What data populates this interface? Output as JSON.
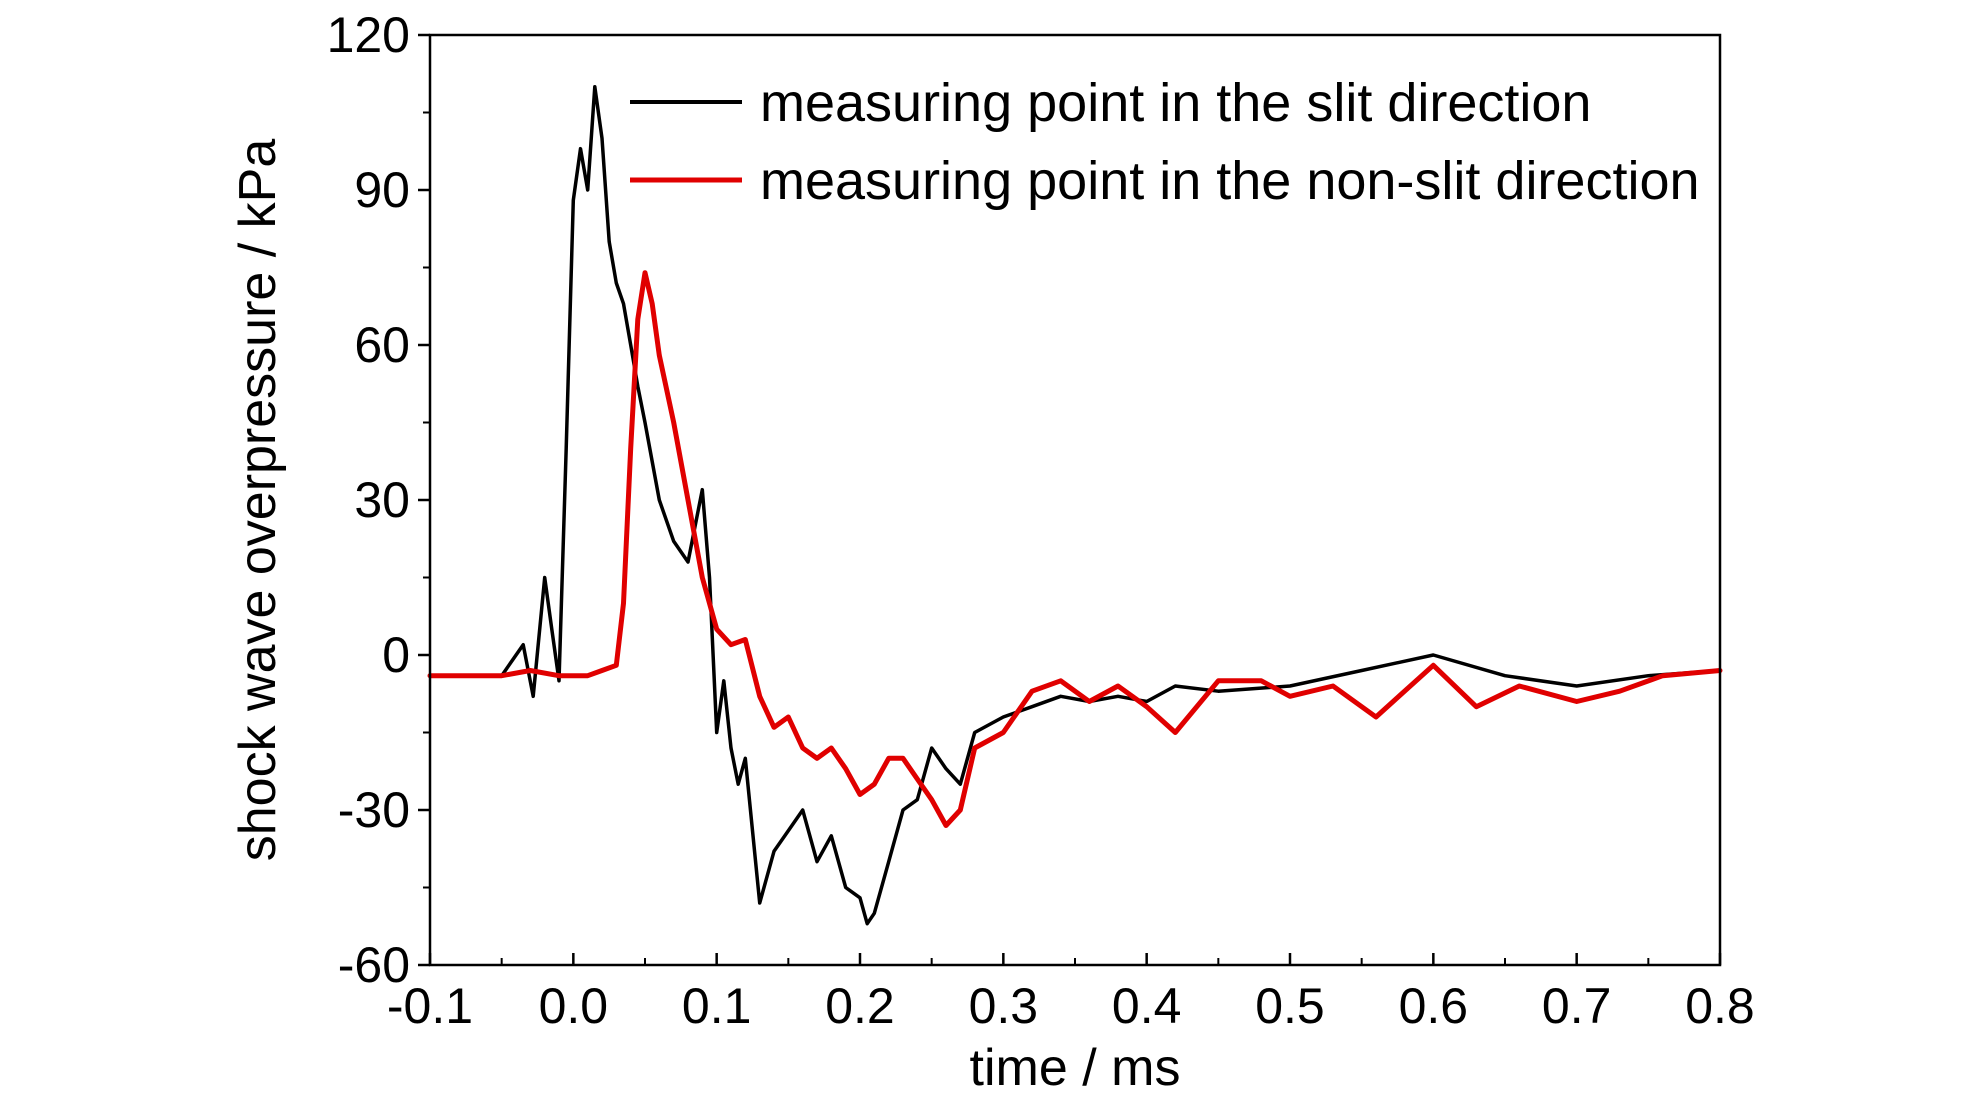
{
  "chart_data": {
    "type": "line",
    "title": "",
    "xlabel": "time / ms",
    "ylabel": "shock wave overpressure / kPa",
    "xlim": [
      -0.1,
      0.8
    ],
    "ylim": [
      -60,
      120
    ],
    "x_ticks": [
      -0.1,
      0.0,
      0.1,
      0.2,
      0.3,
      0.4,
      0.5,
      0.6,
      0.7,
      0.8
    ],
    "x_tick_labels": [
      "-0.1",
      "0.0",
      "0.1",
      "0.2",
      "0.3",
      "0.4",
      "0.5",
      "0.6",
      "0.7",
      "0.8"
    ],
    "y_ticks": [
      -60,
      -30,
      0,
      30,
      60,
      90,
      120
    ],
    "y_tick_labels": [
      "-60",
      "-30",
      "0",
      "30",
      "60",
      "90",
      "120"
    ],
    "grid": false,
    "legend_position": "top-right",
    "colors": {
      "slit": "#000000",
      "non_slit": "#e00000"
    },
    "series": [
      {
        "name": "measuring point in the slit direction",
        "color": "#000000",
        "x": [
          -0.1,
          -0.05,
          -0.035,
          -0.028,
          -0.02,
          -0.015,
          -0.01,
          -0.005,
          0.0,
          0.005,
          0.01,
          0.015,
          0.02,
          0.025,
          0.03,
          0.035,
          0.04,
          0.045,
          0.05,
          0.06,
          0.07,
          0.08,
          0.09,
          0.095,
          0.1,
          0.105,
          0.11,
          0.115,
          0.12,
          0.13,
          0.14,
          0.15,
          0.16,
          0.17,
          0.18,
          0.19,
          0.2,
          0.205,
          0.21,
          0.22,
          0.23,
          0.24,
          0.25,
          0.26,
          0.27,
          0.28,
          0.3,
          0.32,
          0.34,
          0.36,
          0.38,
          0.4,
          0.42,
          0.45,
          0.5,
          0.55,
          0.6,
          0.65,
          0.7,
          0.75,
          0.8
        ],
        "y": [
          -4,
          -4,
          2,
          -8,
          15,
          5,
          -5,
          40,
          88,
          98,
          90,
          110,
          100,
          80,
          72,
          68,
          60,
          52,
          45,
          30,
          22,
          18,
          32,
          15,
          -15,
          -5,
          -18,
          -25,
          -20,
          -48,
          -38,
          -34,
          -30,
          -40,
          -35,
          -45,
          -47,
          -52,
          -50,
          -40,
          -30,
          -28,
          -18,
          -22,
          -25,
          -15,
          -12,
          -10,
          -8,
          -9,
          -8,
          -9,
          -6,
          -7,
          -6,
          -3,
          0,
          -4,
          -6,
          -4,
          -3
        ]
      },
      {
        "name": "measuring point in the non-slit direction",
        "color": "#e00000",
        "x": [
          -0.1,
          -0.05,
          -0.03,
          -0.01,
          0.0,
          0.01,
          0.02,
          0.03,
          0.035,
          0.04,
          0.045,
          0.05,
          0.055,
          0.06,
          0.07,
          0.08,
          0.09,
          0.1,
          0.11,
          0.12,
          0.13,
          0.14,
          0.15,
          0.16,
          0.17,
          0.18,
          0.19,
          0.2,
          0.21,
          0.22,
          0.23,
          0.24,
          0.25,
          0.26,
          0.27,
          0.28,
          0.3,
          0.32,
          0.34,
          0.36,
          0.38,
          0.4,
          0.42,
          0.45,
          0.48,
          0.5,
          0.53,
          0.56,
          0.6,
          0.63,
          0.66,
          0.7,
          0.73,
          0.76,
          0.8
        ],
        "y": [
          -4,
          -4,
          -3,
          -4,
          -4,
          -4,
          -3,
          -2,
          10,
          40,
          65,
          74,
          68,
          58,
          45,
          30,
          15,
          5,
          2,
          3,
          -8,
          -14,
          -12,
          -18,
          -20,
          -18,
          -22,
          -27,
          -25,
          -20,
          -20,
          -24,
          -28,
          -33,
          -30,
          -18,
          -15,
          -7,
          -5,
          -9,
          -6,
          -10,
          -15,
          -5,
          -5,
          -8,
          -6,
          -12,
          -2,
          -10,
          -6,
          -9,
          -7,
          -4,
          -3
        ]
      }
    ]
  }
}
